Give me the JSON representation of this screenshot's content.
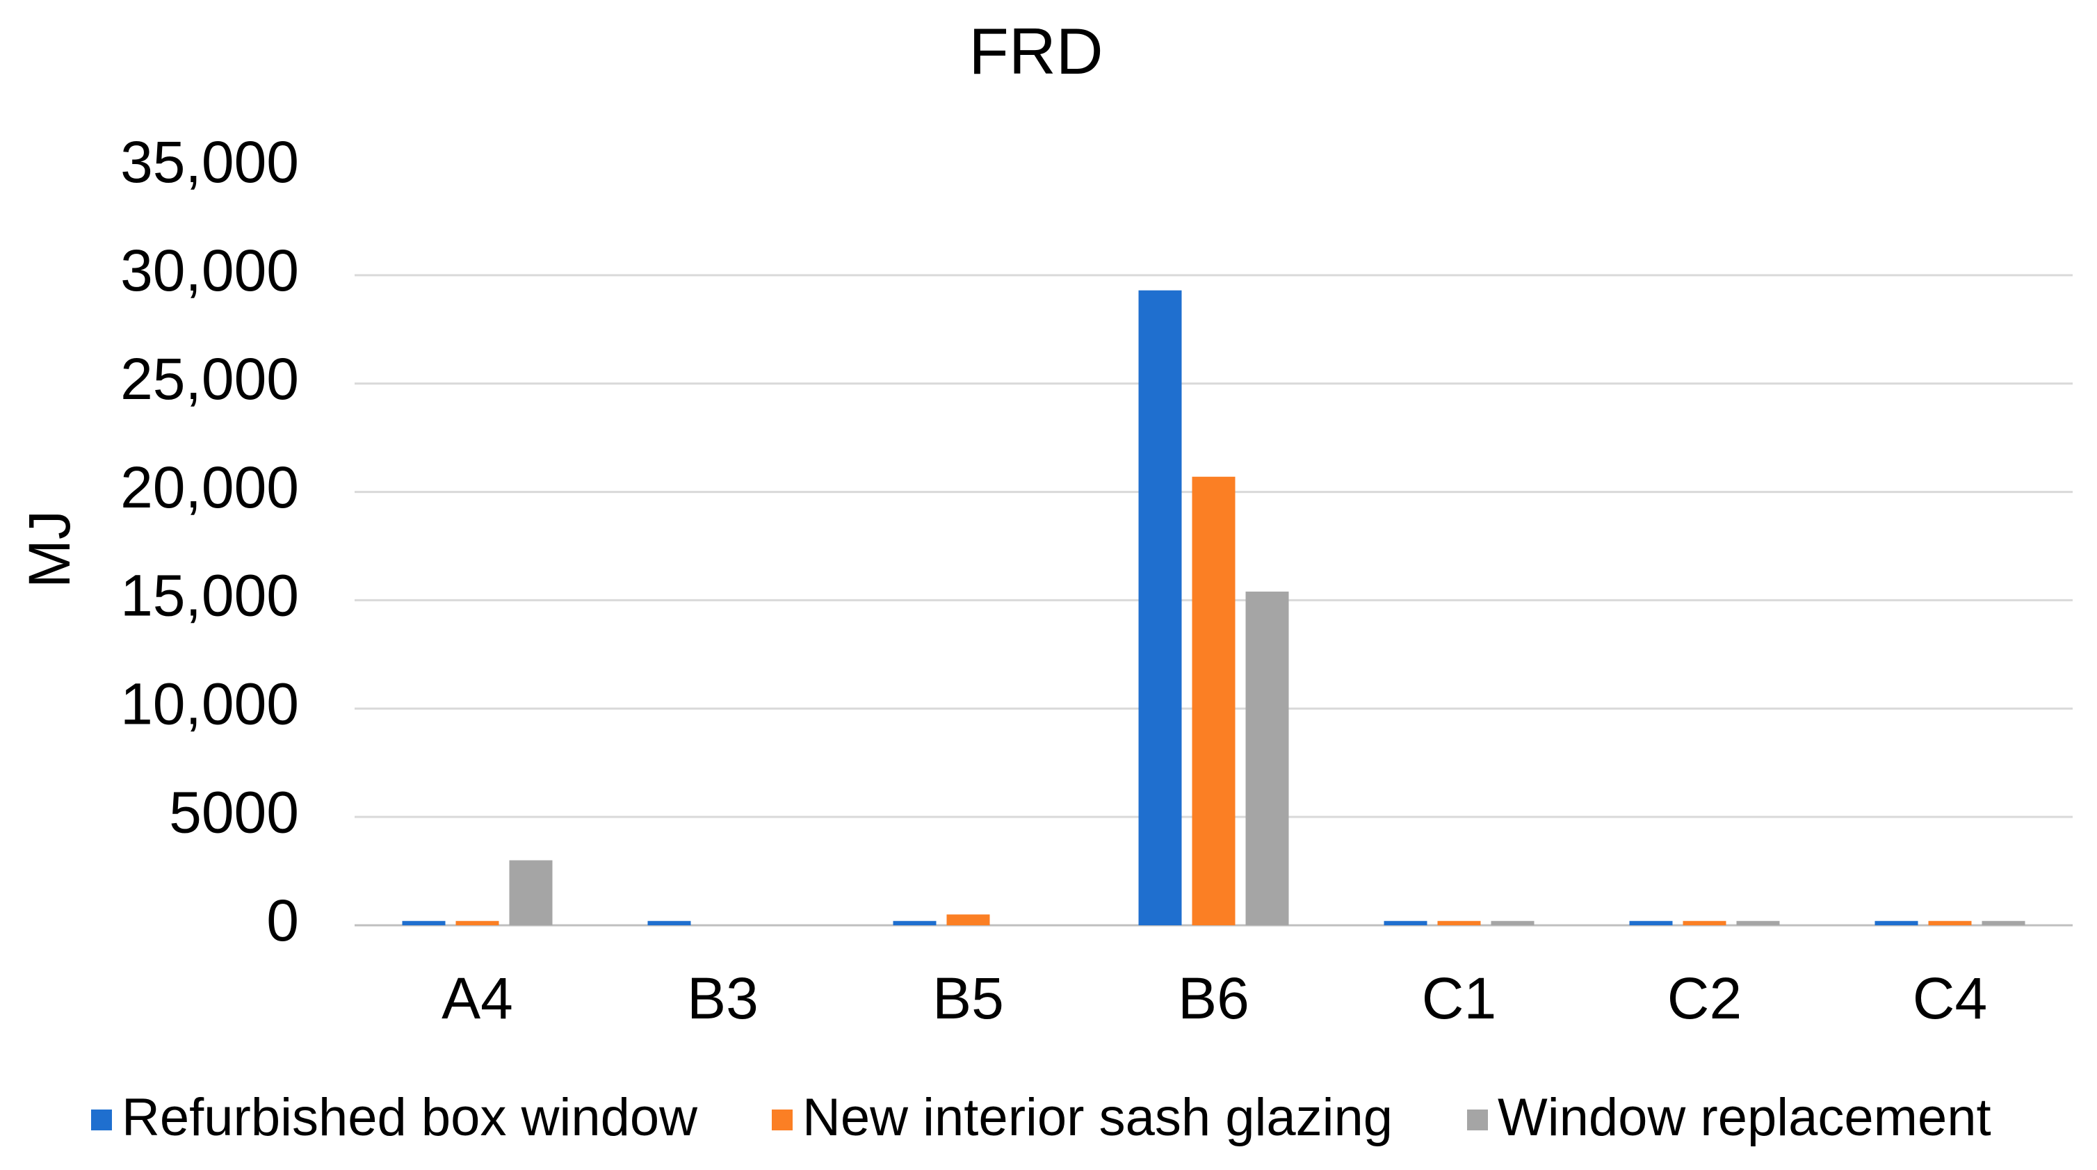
{
  "chart_data": {
    "type": "bar",
    "title": "FRD",
    "y_label": "MJ",
    "categories": [
      "A4",
      "B3",
      "B5",
      "B6",
      "C1",
      "C2",
      "C4"
    ],
    "series": [
      {
        "name": "Refurbished box window",
        "color": "#1f6fcf",
        "values": [
          200,
          200,
          200,
          29300,
          200,
          200,
          200
        ]
      },
      {
        "name": "New interior sash glazing",
        "color": "#fb7f24",
        "values": [
          200,
          0,
          500,
          20700,
          200,
          200,
          200
        ]
      },
      {
        "name": "Window replacement",
        "color": "#a5a5a5",
        "values": [
          3000,
          0,
          0,
          15400,
          200,
          200,
          200
        ]
      }
    ],
    "ylim": [
      0,
      35000
    ],
    "yticks": [
      0,
      5000,
      {
        "value": 10000,
        "label": "10,000"
      },
      {
        "value": 15000,
        "label": "15,000"
      },
      {
        "value": 20000,
        "label": "20,000"
      },
      {
        "value": 25000,
        "label": "25,000"
      },
      {
        "value": 30000,
        "label": "30,000"
      },
      {
        "value": 35000,
        "label": "35,000"
      }
    ],
    "grid": true,
    "legend": "bottom"
  }
}
